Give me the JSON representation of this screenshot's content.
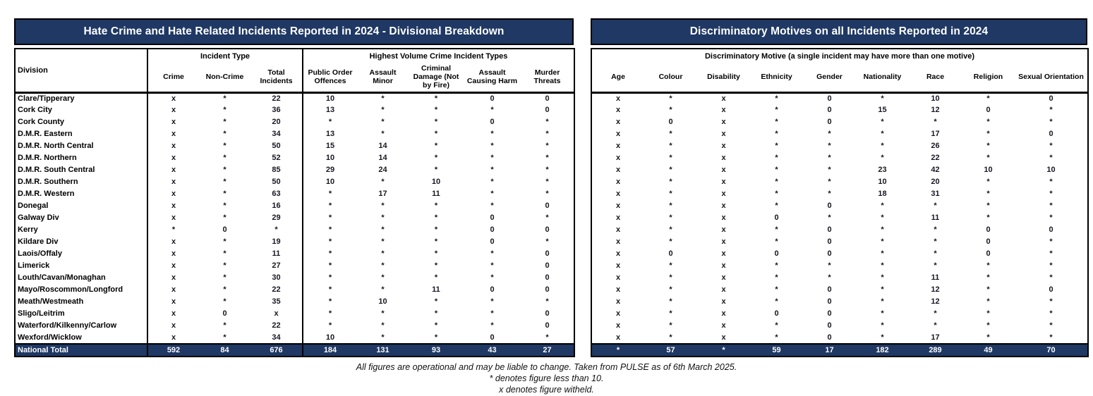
{
  "colors": {
    "header_navy": "#1f3864",
    "cell_text": "#171722"
  },
  "left_table": {
    "title": "Hate Crime and Hate Related Incidents Reported in 2024 - Divisional Breakdown",
    "division_header": "Division",
    "group_headers": [
      "Incident Type",
      "Highest Volume Crime Incident Types"
    ],
    "columns": [
      "Crime",
      "Non-Crime",
      "Total Incidents",
      "Public Order Offences",
      "Assault Minor",
      "Criminal Damage (Not by Fire)",
      "Assault Causing Harm",
      "Murder Threats"
    ],
    "rows": [
      {
        "division": "Clare/Tipperary",
        "values": [
          "x",
          "*",
          "22",
          "10",
          "*",
          "*",
          "0",
          "0"
        ]
      },
      {
        "division": "Cork City",
        "values": [
          "x",
          "*",
          "36",
          "13",
          "*",
          "*",
          "*",
          "0"
        ]
      },
      {
        "division": "Cork County",
        "values": [
          "x",
          "*",
          "20",
          "*",
          "*",
          "*",
          "0",
          "*"
        ]
      },
      {
        "division": "D.M.R. Eastern",
        "values": [
          "x",
          "*",
          "34",
          "13",
          "*",
          "*",
          "*",
          "*"
        ]
      },
      {
        "division": "D.M.R. North Central",
        "values": [
          "x",
          "*",
          "50",
          "15",
          "14",
          "*",
          "*",
          "*"
        ]
      },
      {
        "division": "D.M.R. Northern",
        "values": [
          "x",
          "*",
          "52",
          "10",
          "14",
          "*",
          "*",
          "*"
        ]
      },
      {
        "division": "D.M.R. South Central",
        "values": [
          "x",
          "*",
          "85",
          "29",
          "24",
          "*",
          "*",
          "*"
        ]
      },
      {
        "division": "D.M.R. Southern",
        "values": [
          "x",
          "*",
          "50",
          "10",
          "*",
          "10",
          "*",
          "*"
        ]
      },
      {
        "division": "D.M.R. Western",
        "values": [
          "x",
          "*",
          "63",
          "*",
          "17",
          "11",
          "*",
          "*"
        ]
      },
      {
        "division": "Donegal",
        "values": [
          "x",
          "*",
          "16",
          "*",
          "*",
          "*",
          "*",
          "0"
        ]
      },
      {
        "division": "Galway Div",
        "values": [
          "x",
          "*",
          "29",
          "*",
          "*",
          "*",
          "0",
          "*"
        ]
      },
      {
        "division": "Kerry",
        "values": [
          "*",
          "0",
          "*",
          "*",
          "*",
          "*",
          "0",
          "0"
        ]
      },
      {
        "division": "Kildare Div",
        "values": [
          "x",
          "*",
          "19",
          "*",
          "*",
          "*",
          "0",
          "*"
        ]
      },
      {
        "division": "Laois/Offaly",
        "values": [
          "x",
          "*",
          "11",
          "*",
          "*",
          "*",
          "*",
          "0"
        ]
      },
      {
        "division": "Limerick",
        "values": [
          "x",
          "*",
          "27",
          "*",
          "*",
          "*",
          "*",
          "0"
        ]
      },
      {
        "division": "Louth/Cavan/Monaghan",
        "values": [
          "x",
          "*",
          "30",
          "*",
          "*",
          "*",
          "*",
          "0"
        ]
      },
      {
        "division": "Mayo/Roscommon/Longford",
        "values": [
          "x",
          "*",
          "22",
          "*",
          "*",
          "11",
          "0",
          "0"
        ]
      },
      {
        "division": "Meath/Westmeath",
        "values": [
          "x",
          "*",
          "35",
          "*",
          "10",
          "*",
          "*",
          "*"
        ]
      },
      {
        "division": "Sligo/Leitrim",
        "values": [
          "x",
          "0",
          "x",
          "*",
          "*",
          "*",
          "*",
          "0"
        ]
      },
      {
        "division": "Waterford/Kilkenny/Carlow",
        "values": [
          "x",
          "*",
          "22",
          "*",
          "*",
          "*",
          "*",
          "0"
        ]
      },
      {
        "division": "Wexford/Wicklow",
        "values": [
          "x",
          "*",
          "34",
          "10",
          "*",
          "*",
          "0",
          "*"
        ]
      }
    ],
    "total_label": "National Total",
    "totals": [
      "592",
      "84",
      "676",
      "184",
      "131",
      "93",
      "43",
      "27"
    ]
  },
  "right_table": {
    "title": "Discriminatory  Motives on all Incidents Reported in 2024",
    "group_header": "Discriminatory Motive (a single incident may have more than one motive)",
    "columns": [
      "Age",
      "Colour",
      "Disability",
      "Ethnicity",
      "Gender",
      "Nationality",
      "Race",
      "Religion",
      "Sexual Orientation"
    ],
    "rows": [
      [
        "x",
        "*",
        "x",
        "*",
        "0",
        "*",
        "10",
        "*",
        "0"
      ],
      [
        "x",
        "*",
        "x",
        "*",
        "0",
        "15",
        "12",
        "0",
        "*"
      ],
      [
        "x",
        "0",
        "x",
        "*",
        "0",
        "*",
        "*",
        "*",
        "*"
      ],
      [
        "x",
        "*",
        "x",
        "*",
        "*",
        "*",
        "17",
        "*",
        "0"
      ],
      [
        "x",
        "*",
        "x",
        "*",
        "*",
        "*",
        "26",
        "*",
        "*"
      ],
      [
        "x",
        "*",
        "x",
        "*",
        "*",
        "*",
        "22",
        "*",
        "*"
      ],
      [
        "x",
        "*",
        "x",
        "*",
        "*",
        "23",
        "42",
        "10",
        "10"
      ],
      [
        "x",
        "*",
        "x",
        "*",
        "*",
        "10",
        "20",
        "*",
        "*"
      ],
      [
        "x",
        "*",
        "x",
        "*",
        "*",
        "18",
        "31",
        "*",
        "*"
      ],
      [
        "x",
        "*",
        "x",
        "*",
        "0",
        "*",
        "*",
        "*",
        "*"
      ],
      [
        "x",
        "*",
        "x",
        "0",
        "*",
        "*",
        "11",
        "*",
        "*"
      ],
      [
        "x",
        "*",
        "x",
        "*",
        "0",
        "*",
        "*",
        "0",
        "0"
      ],
      [
        "x",
        "*",
        "x",
        "*",
        "0",
        "*",
        "*",
        "0",
        "*"
      ],
      [
        "x",
        "0",
        "x",
        "0",
        "0",
        "*",
        "*",
        "0",
        "*"
      ],
      [
        "x",
        "*",
        "x",
        "*",
        "*",
        "*",
        "*",
        "*",
        "*"
      ],
      [
        "x",
        "*",
        "x",
        "*",
        "*",
        "*",
        "11",
        "*",
        "*"
      ],
      [
        "x",
        "*",
        "x",
        "*",
        "0",
        "*",
        "12",
        "*",
        "0"
      ],
      [
        "x",
        "*",
        "x",
        "*",
        "0",
        "*",
        "12",
        "*",
        "*"
      ],
      [
        "x",
        "*",
        "x",
        "0",
        "0",
        "*",
        "*",
        "*",
        "*"
      ],
      [
        "x",
        "*",
        "x",
        "*",
        "0",
        "*",
        "*",
        "*",
        "*"
      ],
      [
        "x",
        "*",
        "x",
        "*",
        "0",
        "*",
        "17",
        "*",
        "*"
      ]
    ],
    "totals": [
      "*",
      "57",
      "*",
      "59",
      "17",
      "182",
      "289",
      "49",
      "70"
    ]
  },
  "footnotes": [
    "All figures are operational and may be liable to change.  Taken from PULSE as of 6th March 2025.",
    "* denotes figure less than 10.",
    "x denotes figure witheld."
  ]
}
